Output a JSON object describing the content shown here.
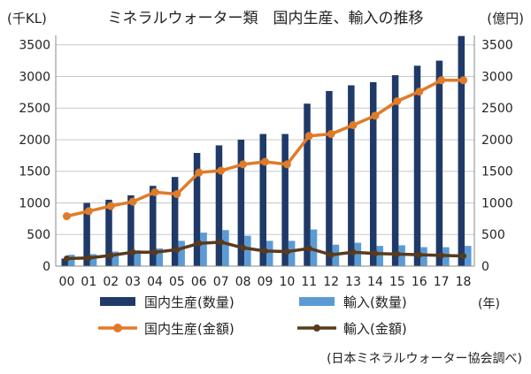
{
  "chart_data": {
    "type": "bar",
    "title": "ミネラルウォーター類　国内生産、輸入の推移",
    "y_left_unit": "(千KL)",
    "y_right_unit": "(億円)",
    "x_unit": "(年)",
    "source": "(日本ミネラルウォーター協会調べ)",
    "categories": [
      "00",
      "01",
      "02",
      "03",
      "04",
      "05",
      "06",
      "07",
      "08",
      "09",
      "10",
      "11",
      "12",
      "13",
      "14",
      "15",
      "16",
      "17",
      "18"
    ],
    "y_ticks": [
      "0",
      "500",
      "1000",
      "1500",
      "2000",
      "2500",
      "3000",
      "3500"
    ],
    "y_right_ticks": [
      "0",
      "500",
      "1000",
      "1500",
      "2000",
      "2500",
      "3000",
      "3500"
    ],
    "ylim": [
      0,
      3650
    ],
    "y2lim": [
      0,
      3650
    ],
    "grid": true,
    "legend_position": "bottom",
    "series": [
      {
        "name": "国内生産(数量)",
        "kind": "bar",
        "axis": "left",
        "color": "#1f3a68",
        "values": [
          120,
          1000,
          1050,
          1120,
          1270,
          1410,
          1790,
          1910,
          2000,
          2090,
          2090,
          2570,
          2770,
          2860,
          2910,
          3020,
          3170,
          3250,
          3640
        ]
      },
      {
        "name": "輸入(数量)",
        "kind": "bar",
        "axis": "left",
        "color": "#5b9bd5",
        "values": [
          180,
          190,
          230,
          250,
          280,
          400,
          530,
          570,
          480,
          400,
          400,
          580,
          340,
          370,
          320,
          330,
          300,
          300,
          320
        ]
      },
      {
        "name": "国内生産(金額)",
        "kind": "line",
        "axis": "right",
        "color": "#e07b28",
        "values": [
          790,
          870,
          950,
          1020,
          1170,
          1140,
          1480,
          1510,
          1610,
          1650,
          1610,
          2060,
          2090,
          2230,
          2380,
          2610,
          2760,
          2940,
          2940
        ]
      },
      {
        "name": "輸入(金額)",
        "kind": "line",
        "axis": "right",
        "color": "#5a3a1c",
        "values": [
          120,
          130,
          170,
          220,
          220,
          260,
          360,
          380,
          290,
          240,
          230,
          280,
          180,
          220,
          200,
          190,
          180,
          170,
          160
        ]
      }
    ]
  }
}
